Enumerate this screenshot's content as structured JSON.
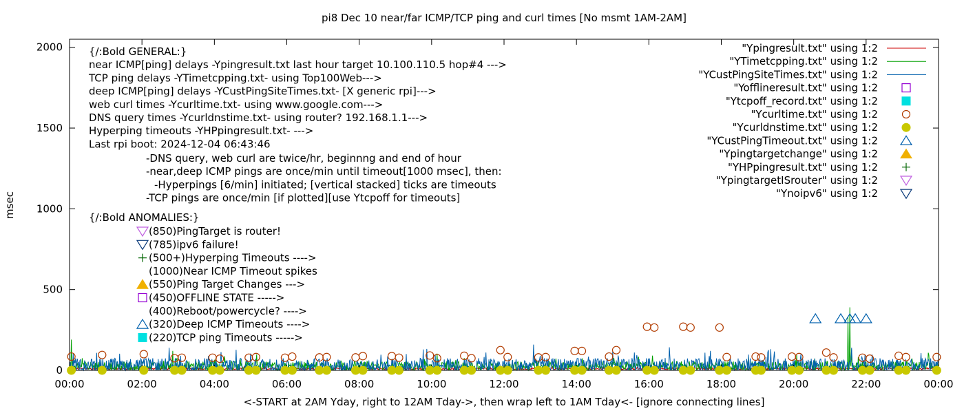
{
  "chart_data": {
    "type": "line",
    "title": "pi8 Dec 10  near/far ICMP/TCP ping and curl times [No msmt 1AM-2AM]",
    "xlabel": "<-START at 2AM Yday, right to 12AM Tday->, then wrap left to 1AM Tday<- [ignore connecting lines]",
    "ylabel": "msec",
    "xlim": [
      0,
      24
    ],
    "ylim": [
      0,
      2050
    ],
    "x_ticks": [
      {
        "v": 0,
        "label": "00:00"
      },
      {
        "v": 2,
        "label": "02:00"
      },
      {
        "v": 4,
        "label": "04:00"
      },
      {
        "v": 6,
        "label": "06:00"
      },
      {
        "v": 8,
        "label": "08:00"
      },
      {
        "v": 10,
        "label": "10:00"
      },
      {
        "v": 12,
        "label": "12:00"
      },
      {
        "v": 14,
        "label": "14:00"
      },
      {
        "v": 16,
        "label": "16:00"
      },
      {
        "v": 18,
        "label": "18:00"
      },
      {
        "v": 20,
        "label": "20:00"
      },
      {
        "v": 22,
        "label": "22:00"
      },
      {
        "v": 24,
        "label": "00:00"
      }
    ],
    "y_ticks": [
      {
        "v": 0,
        "label": "0"
      },
      {
        "v": 500,
        "label": "500"
      },
      {
        "v": 1000,
        "label": "1000"
      },
      {
        "v": 1500,
        "label": "1500"
      },
      {
        "v": 2000,
        "label": "2000"
      }
    ],
    "grid": false,
    "legend_position": "top-right",
    "legend": [
      {
        "label": "\"Ypingresult.txt\" using 1:2",
        "marker": "line",
        "color": "#cc0000"
      },
      {
        "label": "\"YTimetcpping.txt\" using 1:2",
        "marker": "line",
        "color": "#00a000"
      },
      {
        "label": "\"YCustPingSiteTimes.txt\" using 1:2",
        "marker": "line",
        "color": "#0060ad"
      },
      {
        "label": "\"Yofflineresult.txt\" using 1:2",
        "marker": "square-open",
        "color": "#9400d3"
      },
      {
        "label": "\"Ytcpoff_record.txt\" using 1:2",
        "marker": "square-filled",
        "color": "#00e0e0"
      },
      {
        "label": "\"Ycurltime.txt\" using 1:2",
        "marker": "circle-open",
        "color": "#b23c00"
      },
      {
        "label": "\"Ycurldnstime.txt\" using 1:2",
        "marker": "circle-filled",
        "color": "#c8c800"
      },
      {
        "label": "\"YCustPingTimeout.txt\" using 1:2",
        "marker": "triangle-open",
        "color": "#0060ad"
      },
      {
        "label": "\"Ypingtargetchange\" using 1:2",
        "marker": "triangle-filled",
        "color": "#f0b000"
      },
      {
        "label": "\"YHPpingresult.txt\" using 1:2",
        "marker": "plus",
        "color": "#006400"
      },
      {
        "label": "\"YpingtargetISrouter\" using 1:2",
        "marker": "triangle-down-open",
        "color": "#c060e0"
      },
      {
        "label": "\"Ynoipv6\" using 1:2",
        "marker": "triangle-down-open",
        "color": "#0a3a7a"
      }
    ],
    "annotations_general": [
      "{/:Bold GENERAL:}",
      "near ICMP[ping] delays -Ypingresult.txt last hour target 10.100.110.5 hop#4 --->",
      "TCP ping delays -YTimetcpping.txt- using Top100Web--->",
      "deep ICMP[ping] delays -YCustPingSiteTimes.txt- [X generic rpi]--->",
      "web curl times -Ycurltime.txt- using www.google.com--->",
      "DNS query times -Ycurldnstime.txt- using router? 192.168.1.1--->",
      "Hyperping timeouts -YHPpingresult.txt- --->",
      "Last rpi boot: 2024-12-04 06:43:46"
    ],
    "annotations_notes": [
      "-DNS query, web curl are twice/hr, beginnng and end of hour",
      "-near,deep ICMP pings are once/min until timeout[1000 msec], then:",
      "-Hyperpings [6/min] initiated; [vertical stacked] ticks are timeouts",
      "-TCP pings are once/min [if plotted][use Ytcpoff for timeouts]"
    ],
    "annotations_anomalies_title": "{/:Bold ANOMALIES:}",
    "annotations_anomalies": [
      {
        "text": "(850)PingTarget is router!",
        "marker": "triangle-down-open",
        "color": "#c060e0"
      },
      {
        "text": "(785)ipv6 failure!",
        "marker": "triangle-down-open",
        "color": "#0a3a7a"
      },
      {
        "text": "(500+)Hyperping Timeouts ---->",
        "marker": "plus",
        "color": "#006400"
      },
      {
        "text": "(1000)Near ICMP Timeout spikes",
        "marker": "none",
        "color": "#000000"
      },
      {
        "text": "(550)Ping Target Changes --->",
        "marker": "triangle-filled",
        "color": "#f0b000"
      },
      {
        "text": "(450)OFFLINE STATE ----->",
        "marker": "square-open",
        "color": "#9400d3"
      },
      {
        "text": "(400)Reboot/powercycle? ---->",
        "marker": "none",
        "color": "#000000"
      },
      {
        "text": "(320)Deep ICMP Timeouts ---->",
        "marker": "triangle-open",
        "color": "#0060ad"
      },
      {
        "text": "(220)TCP ping Timeouts ----->",
        "marker": "square-filled",
        "color": "#00e0e0"
      }
    ],
    "series": [
      {
        "name": "\"Ycurltime.txt\" using 1:2",
        "marker": "circle-open",
        "color": "#b23c00",
        "points": [
          [
            0.05,
            85
          ],
          [
            0.9,
            95
          ],
          [
            2.05,
            100
          ],
          [
            2.9,
            75
          ],
          [
            3.1,
            78
          ],
          [
            3.95,
            78
          ],
          [
            4.15,
            72
          ],
          [
            4.95,
            78
          ],
          [
            5.15,
            82
          ],
          [
            5.95,
            78
          ],
          [
            6.15,
            85
          ],
          [
            6.9,
            80
          ],
          [
            7.1,
            82
          ],
          [
            7.9,
            80
          ],
          [
            8.1,
            88
          ],
          [
            8.9,
            88
          ],
          [
            9.1,
            78
          ],
          [
            9.95,
            92
          ],
          [
            10.15,
            75
          ],
          [
            10.9,
            90
          ],
          [
            11.1,
            75
          ],
          [
            11.9,
            125
          ],
          [
            12.1,
            82
          ],
          [
            12.95,
            80
          ],
          [
            13.15,
            82
          ],
          [
            13.95,
            120
          ],
          [
            14.15,
            120
          ],
          [
            14.9,
            85
          ],
          [
            15.1,
            125
          ],
          [
            15.95,
            270
          ],
          [
            16.15,
            265
          ],
          [
            16.95,
            270
          ],
          [
            17.15,
            265
          ],
          [
            17.95,
            265
          ],
          [
            18.15,
            82
          ],
          [
            18.95,
            85
          ],
          [
            19.1,
            80
          ],
          [
            19.95,
            85
          ],
          [
            20.15,
            82
          ],
          [
            20.9,
            110
          ],
          [
            21.1,
            80
          ],
          [
            21.9,
            78
          ],
          [
            22.1,
            72
          ],
          [
            22.9,
            90
          ],
          [
            23.1,
            82
          ],
          [
            23.95,
            82
          ]
        ]
      },
      {
        "name": "\"Ycurldnstime.txt\" using 1:2",
        "marker": "circle-filled",
        "color": "#c8c800",
        "points": [
          [
            0.05,
            0
          ],
          [
            0.9,
            0
          ],
          [
            2.05,
            0
          ],
          [
            2.9,
            0
          ],
          [
            3.1,
            0
          ],
          [
            3.95,
            0
          ],
          [
            4.15,
            0
          ],
          [
            4.95,
            0
          ],
          [
            5.15,
            0
          ],
          [
            5.95,
            0
          ],
          [
            6.15,
            0
          ],
          [
            6.9,
            0
          ],
          [
            7.1,
            0
          ],
          [
            7.9,
            0
          ],
          [
            8.1,
            0
          ],
          [
            8.9,
            0
          ],
          [
            9.1,
            0
          ],
          [
            9.95,
            0
          ],
          [
            10.15,
            0
          ],
          [
            10.9,
            0
          ],
          [
            11.1,
            0
          ],
          [
            11.9,
            0
          ],
          [
            12.1,
            0
          ],
          [
            12.95,
            0
          ],
          [
            13.15,
            0
          ],
          [
            13.95,
            0
          ],
          [
            14.15,
            0
          ],
          [
            14.9,
            0
          ],
          [
            15.1,
            0
          ],
          [
            15.95,
            0
          ],
          [
            16.15,
            0
          ],
          [
            16.95,
            0
          ],
          [
            17.15,
            0
          ],
          [
            17.95,
            0
          ],
          [
            18.15,
            0
          ],
          [
            18.95,
            0
          ],
          [
            19.1,
            0
          ],
          [
            19.95,
            0
          ],
          [
            20.15,
            0
          ],
          [
            20.9,
            0
          ],
          [
            21.1,
            0
          ],
          [
            21.9,
            0
          ],
          [
            22.1,
            0
          ],
          [
            22.9,
            0
          ],
          [
            23.1,
            0
          ],
          [
            23.95,
            0
          ]
        ]
      },
      {
        "name": "\"YCustPingTimeout.txt\" using 1:2",
        "marker": "triangle-open",
        "color": "#0060ad",
        "points": [
          [
            20.6,
            320
          ],
          [
            21.3,
            320
          ],
          [
            21.55,
            320
          ],
          [
            21.7,
            320
          ],
          [
            22.0,
            320
          ]
        ]
      },
      {
        "name": "\"YHPpingresult.txt\" using 1:2",
        "marker": "plus",
        "color": "#006400",
        "points": []
      },
      {
        "name": "\"Ypingresult.txt\" using 1:2",
        "line": true,
        "color": "#cc0000",
        "base": 10,
        "amplitude": 6,
        "spikes": []
      },
      {
        "name": "\"YTimetcpping.txt\" using 1:2",
        "line": true,
        "color": "#00a000",
        "base": 25,
        "amplitude": 30,
        "spikes": [
          [
            0.05,
            190
          ],
          [
            0.1,
            70
          ],
          [
            2.85,
            120
          ],
          [
            3.3,
            55
          ],
          [
            7.5,
            60
          ],
          [
            9.8,
            70
          ],
          [
            12.9,
            60
          ],
          [
            16.9,
            55
          ],
          [
            21.5,
            330
          ],
          [
            21.55,
            390
          ],
          [
            21.6,
            130
          ]
        ]
      },
      {
        "name": "\"YCustPingSiteTimes.txt\" using 1:2",
        "line": true,
        "color": "#0060ad",
        "base": 30,
        "amplitude": 45,
        "spikes": [
          [
            2.75,
            140
          ],
          [
            10.1,
            95
          ],
          [
            11.5,
            110
          ],
          [
            13.0,
            90
          ],
          [
            15.6,
            110
          ],
          [
            17.7,
            120
          ],
          [
            20.2,
            100
          ],
          [
            21.6,
            140
          ]
        ]
      }
    ]
  }
}
